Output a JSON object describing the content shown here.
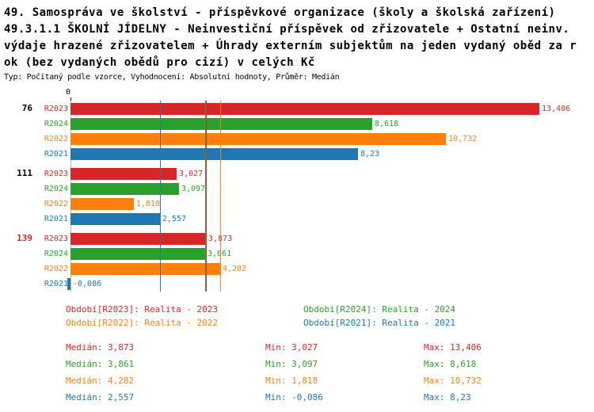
{
  "header": {
    "title_lines": [
      "49. Samospráva ve školství - příspěvkové organizace (školy a školská zařízení)",
      "49.3.1.1 ŠKOLNÍ JÍDELNY - Neinvestiční příspěvek od zřizovatele + Ostatní neinv.",
      "výdaje hrazené zřizovatelem + Úhrady externím subjektům na jeden vydaný oběd za r",
      "ok (bez vydaných obědů pro cizí) v celých Kč"
    ],
    "subtitle": "Typ: Počítaný podle vzorce, Vyhodnocení: Absolutní hodnoty, Průměr: Medián"
  },
  "chart_data": {
    "type": "bar",
    "orientation": "horizontal",
    "axis": {
      "zero_label": "0"
    },
    "xlim": [
      0,
      13.406
    ],
    "grid": false,
    "series_colors": {
      "R2023": "#d62728",
      "R2024": "#2ca02c",
      "R2022": "#ff7f0e",
      "R2021": "#1f77b4"
    },
    "groups": [
      {
        "label": "76",
        "label_color": "#000000",
        "bars": [
          {
            "series": "R2023",
            "value": 13.406,
            "display": "13,406"
          },
          {
            "series": "R2024",
            "value": 8.618,
            "display": "8,618"
          },
          {
            "series": "R2022",
            "value": 10.732,
            "display": "10,732"
          },
          {
            "series": "R2021",
            "value": 8.23,
            "display": "8,23"
          }
        ]
      },
      {
        "label": "111",
        "label_color": "#000000",
        "bars": [
          {
            "series": "R2023",
            "value": 3.027,
            "display": "3,027"
          },
          {
            "series": "R2024",
            "value": 3.097,
            "display": "3,097"
          },
          {
            "series": "R2022",
            "value": 1.818,
            "display": "1,818"
          },
          {
            "series": "R2021",
            "value": 2.557,
            "display": "2,557"
          }
        ]
      },
      {
        "label": "139",
        "label_color": "#d62728",
        "bars": [
          {
            "series": "R2023",
            "value": 3.873,
            "display": "3,873"
          },
          {
            "series": "R2024",
            "value": 3.861,
            "display": "3,861"
          },
          {
            "series": "R2022",
            "value": 4.282,
            "display": "4,282"
          },
          {
            "series": "R2021",
            "value": -0.086,
            "display": "-0,086"
          }
        ]
      }
    ],
    "median_lines": [
      {
        "series": "R2021",
        "value": 2.557
      },
      {
        "series": "R2024",
        "value": 3.861
      },
      {
        "series": "R2023",
        "value": 3.873
      },
      {
        "series": "R2022",
        "value": 4.282
      }
    ]
  },
  "legend": {
    "items": [
      {
        "series": "R2023",
        "text": "Období[R2023]: Realita - 2023"
      },
      {
        "series": "R2024",
        "text": "Období[R2024]: Realita - 2024"
      },
      {
        "series": "R2022",
        "text": "Období[R2022]: Realita - 2022"
      },
      {
        "series": "R2021",
        "text": "Období[R2021]: Realita - 2021"
      }
    ]
  },
  "stats": {
    "rows": [
      {
        "series": "R2023",
        "median_label": "Medián: 3,873",
        "min_label": "Min: 3,027",
        "max_label": "Max: 13,406"
      },
      {
        "series": "R2024",
        "median_label": "Medián: 3,861",
        "min_label": "Min: 3,097",
        "max_label": "Max: 8,618"
      },
      {
        "series": "R2022",
        "median_label": "Medián: 4,282",
        "min_label": "Min: 1,818",
        "max_label": "Max: 10,732"
      },
      {
        "series": "R2021",
        "median_label": "Medián: 2,557",
        "min_label": "Min: -0,086",
        "max_label": "Max: 8,23"
      }
    ]
  }
}
